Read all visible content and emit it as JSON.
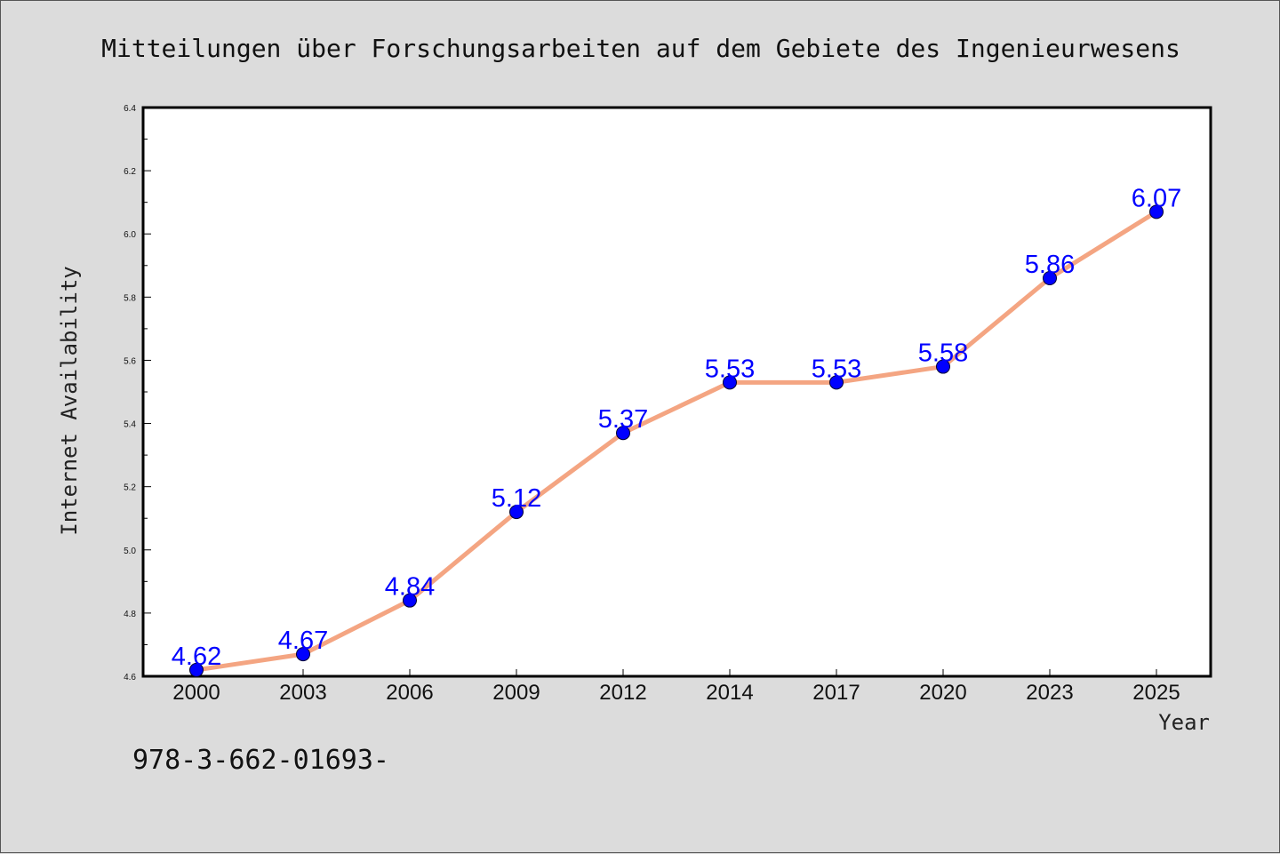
{
  "chart_data": {
    "type": "line",
    "title": "Mitteilungen über Forschungsarbeiten auf dem Gebiete des Ingenieurwesens",
    "xlabel": "Year",
    "ylabel": "Internet Availability",
    "categories": [
      "2000",
      "2003",
      "2006",
      "2009",
      "2012",
      "2014",
      "2017",
      "2020",
      "2023",
      "2025"
    ],
    "values": [
      4.62,
      4.67,
      4.84,
      5.12,
      5.37,
      5.53,
      5.53,
      5.58,
      5.86,
      6.07
    ],
    "data_labels": [
      "4.62",
      "4.67",
      "4.84",
      "5.12",
      "5.37",
      "5.53",
      "5.53",
      "5.58",
      "5.86",
      "6.07"
    ],
    "ylim": [
      4.6,
      6.4
    ],
    "yticks": [
      "4.6",
      "4.8",
      "5.0",
      "5.2",
      "5.4",
      "5.6",
      "5.8",
      "6.0",
      "6.2",
      "6.4"
    ],
    "grid": false,
    "legend": false,
    "line_color": "#f4a582",
    "marker_color": "#0000ff",
    "label_color": "#0000ff"
  },
  "footer": {
    "isbn": "978-3-662-01693-"
  }
}
